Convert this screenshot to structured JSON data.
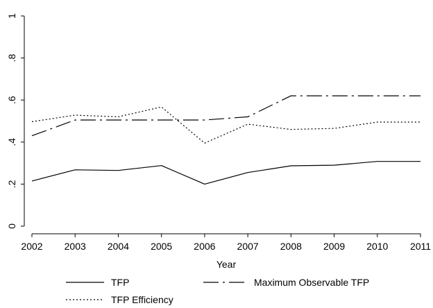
{
  "chart_data": {
    "type": "line",
    "title": "",
    "xlabel": "Year",
    "ylabel": "",
    "x": [
      2002,
      2003,
      2004,
      2005,
      2006,
      2007,
      2008,
      2009,
      2010,
      2011
    ],
    "xticks": [
      "2002",
      "2003",
      "2004",
      "2005",
      "2006",
      "2007",
      "2008",
      "2009",
      "2010",
      "2011"
    ],
    "ylim": [
      0,
      1
    ],
    "yticks": [
      0,
      0.2,
      0.4,
      0.6,
      0.8,
      1
    ],
    "yticklabels": [
      "0",
      ".2",
      ".4",
      ".6",
      ".8",
      "1"
    ],
    "grid": false,
    "legend": "bottom",
    "series": [
      {
        "name": "TFP",
        "style": "solid",
        "color": "#000000",
        "values": [
          0.215,
          0.268,
          0.265,
          0.288,
          0.2,
          0.255,
          0.287,
          0.29,
          0.308,
          0.308
        ]
      },
      {
        "name": "Maximum Observable TFP",
        "style": "dash-dot",
        "color": "#000000",
        "values": [
          0.43,
          0.505,
          0.505,
          0.505,
          0.505,
          0.52,
          0.62,
          0.62,
          0.62,
          0.62
        ]
      },
      {
        "name": "TFP Efficiency",
        "style": "dotted",
        "color": "#000000",
        "values": [
          0.497,
          0.528,
          0.52,
          0.567,
          0.395,
          0.485,
          0.46,
          0.465,
          0.495,
          0.495
        ]
      }
    ]
  }
}
